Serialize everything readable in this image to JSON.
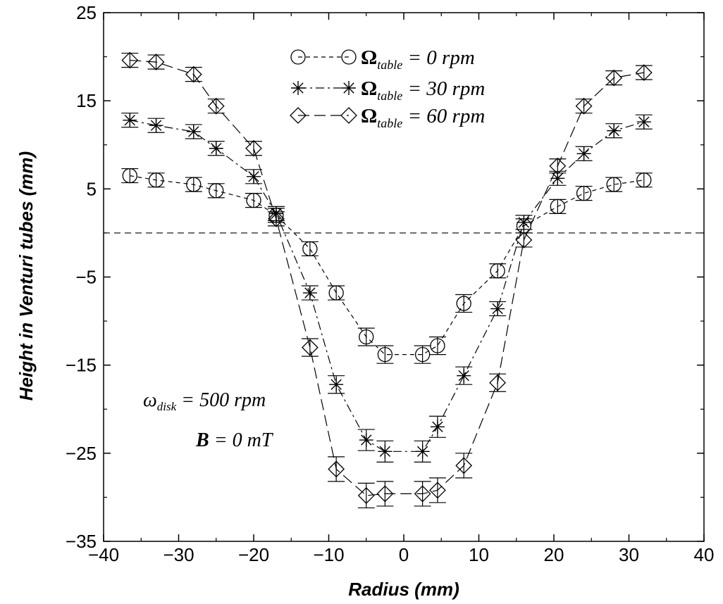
{
  "chart_data": {
    "type": "scatter",
    "xlabel": "Radius (mm)",
    "ylabel": "Height in Venturi tubes (mm)",
    "xlim": [
      -40,
      40
    ],
    "ylim": [
      -35,
      25
    ],
    "x_ticks": [
      -40,
      -30,
      -20,
      -10,
      0,
      10,
      20,
      30,
      40
    ],
    "y_ticks": [
      -35,
      -25,
      -15,
      -5,
      5,
      15,
      25
    ],
    "x_tick_labels": [
      "−40",
      "−30",
      "−20",
      "−10",
      "0",
      "10",
      "20",
      "30",
      "40"
    ],
    "y_tick_labels": [
      "−35",
      "−25",
      "−15",
      "−5",
      "5",
      "15",
      "25"
    ],
    "grid": false,
    "legend_position": "top-center",
    "reference_line": {
      "y": 0,
      "style": "dashed"
    },
    "legend": {
      "symbol": "Ω",
      "subscript": "table",
      "entries": [
        " =  0 rpm",
        " = 30 rpm",
        " = 60 rpm"
      ]
    },
    "annotations": {
      "line1_symbol": "ω",
      "line1_subscript": "disk",
      "line1_text": " = 500 rpm",
      "line2_symbol": "B",
      "line2_text": " = 0 mT"
    },
    "series": [
      {
        "marker": "circle",
        "line_style": "short-dash",
        "x": [
          -36.5,
          -33,
          -28,
          -25,
          -20,
          -17,
          -12.5,
          -9,
          -5,
          -2.5,
          2.5,
          4.5,
          8,
          12.5,
          16,
          20.5,
          24,
          28,
          32
        ],
        "y": [
          6.5,
          6,
          5.5,
          4.8,
          3.7,
          2,
          -1.8,
          -6.8,
          -11.8,
          -13.8,
          -13.8,
          -12.8,
          -8,
          -4.3,
          0.8,
          3,
          4.5,
          5.5,
          6
        ],
        "err": [
          0.8,
          0.8,
          0.8,
          0.8,
          0.8,
          0.8,
          0.8,
          0.8,
          1,
          1,
          1,
          1,
          1,
          0.8,
          0.8,
          0.8,
          0.8,
          0.8,
          0.8
        ]
      },
      {
        "marker": "asterisk",
        "line_style": "dash-dot",
        "x": [
          -36.5,
          -33,
          -28,
          -25,
          -20,
          -17,
          -12.5,
          -9,
          -5,
          -2.5,
          2.5,
          4.5,
          8,
          12.5,
          16,
          20.5,
          24,
          28,
          32
        ],
        "y": [
          12.8,
          12.2,
          11.5,
          9.6,
          6.4,
          2.2,
          -6.8,
          -17.2,
          -23.5,
          -24.8,
          -24.8,
          -22,
          -16.2,
          -8.6,
          1.2,
          6.2,
          9,
          11.6,
          12.6
        ],
        "err": [
          0.8,
          0.8,
          0.8,
          0.8,
          0.8,
          0.8,
          0.8,
          1,
          1.2,
          1.2,
          1.2,
          1.2,
          1,
          0.8,
          0.8,
          0.8,
          0.8,
          0.8,
          0.8
        ]
      },
      {
        "marker": "diamond",
        "line_style": "long-dash",
        "x": [
          -36.5,
          -33,
          -28,
          -25,
          -20,
          -17,
          -12.5,
          -9,
          -5,
          -2.5,
          2.5,
          4.5,
          8,
          12.5,
          16,
          20.5,
          24,
          28,
          32
        ],
        "y": [
          19.6,
          19.4,
          18,
          14.4,
          9.6,
          1.6,
          -13,
          -26.8,
          -29.8,
          -29.6,
          -29.6,
          -29.2,
          -26.4,
          -17,
          -0.8,
          7.6,
          14.4,
          17.6,
          18.2
        ],
        "err": [
          0.8,
          0.8,
          0.8,
          0.8,
          0.8,
          0.8,
          1,
          1.4,
          1.4,
          1.4,
          1.4,
          1.4,
          1.4,
          1,
          0.8,
          0.8,
          0.8,
          0.8,
          0.8
        ]
      }
    ]
  }
}
